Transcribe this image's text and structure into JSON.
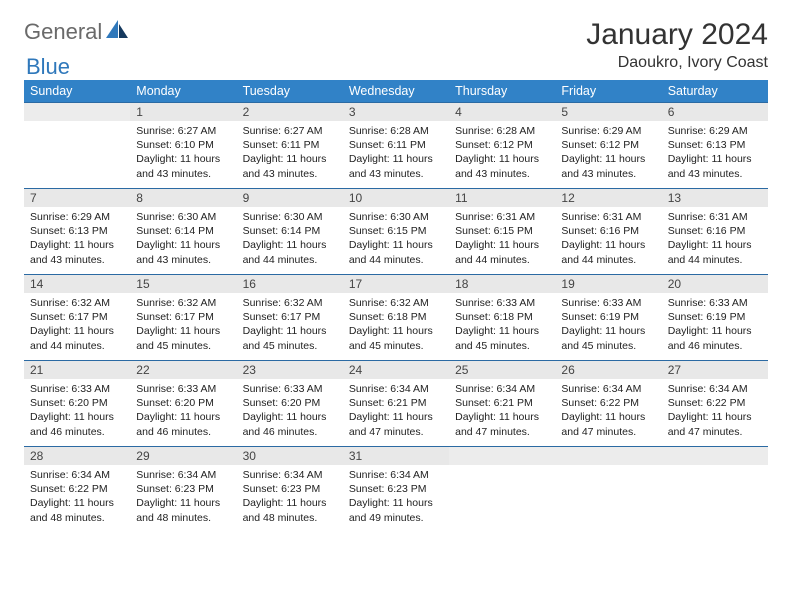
{
  "brand": {
    "part1": "General",
    "part2": "Blue"
  },
  "colors": {
    "header_bg": "#3182c7",
    "header_text": "#ffffff",
    "row_border": "#2b6aa3",
    "daynum_bg": "#e8e8e8",
    "logo_gray": "#6a6a6a",
    "logo_blue": "#2f78bb"
  },
  "title": "January 2024",
  "location": "Daoukro, Ivory Coast",
  "weekdays": [
    "Sunday",
    "Monday",
    "Tuesday",
    "Wednesday",
    "Thursday",
    "Friday",
    "Saturday"
  ],
  "start_offset": 1,
  "days": [
    {
      "n": 1,
      "sr": "6:27 AM",
      "ss": "6:10 PM",
      "dh": 11,
      "dm": 43
    },
    {
      "n": 2,
      "sr": "6:27 AM",
      "ss": "6:11 PM",
      "dh": 11,
      "dm": 43
    },
    {
      "n": 3,
      "sr": "6:28 AM",
      "ss": "6:11 PM",
      "dh": 11,
      "dm": 43
    },
    {
      "n": 4,
      "sr": "6:28 AM",
      "ss": "6:12 PM",
      "dh": 11,
      "dm": 43
    },
    {
      "n": 5,
      "sr": "6:29 AM",
      "ss": "6:12 PM",
      "dh": 11,
      "dm": 43
    },
    {
      "n": 6,
      "sr": "6:29 AM",
      "ss": "6:13 PM",
      "dh": 11,
      "dm": 43
    },
    {
      "n": 7,
      "sr": "6:29 AM",
      "ss": "6:13 PM",
      "dh": 11,
      "dm": 43
    },
    {
      "n": 8,
      "sr": "6:30 AM",
      "ss": "6:14 PM",
      "dh": 11,
      "dm": 43
    },
    {
      "n": 9,
      "sr": "6:30 AM",
      "ss": "6:14 PM",
      "dh": 11,
      "dm": 44
    },
    {
      "n": 10,
      "sr": "6:30 AM",
      "ss": "6:15 PM",
      "dh": 11,
      "dm": 44
    },
    {
      "n": 11,
      "sr": "6:31 AM",
      "ss": "6:15 PM",
      "dh": 11,
      "dm": 44
    },
    {
      "n": 12,
      "sr": "6:31 AM",
      "ss": "6:16 PM",
      "dh": 11,
      "dm": 44
    },
    {
      "n": 13,
      "sr": "6:31 AM",
      "ss": "6:16 PM",
      "dh": 11,
      "dm": 44
    },
    {
      "n": 14,
      "sr": "6:32 AM",
      "ss": "6:17 PM",
      "dh": 11,
      "dm": 44
    },
    {
      "n": 15,
      "sr": "6:32 AM",
      "ss": "6:17 PM",
      "dh": 11,
      "dm": 45
    },
    {
      "n": 16,
      "sr": "6:32 AM",
      "ss": "6:17 PM",
      "dh": 11,
      "dm": 45
    },
    {
      "n": 17,
      "sr": "6:32 AM",
      "ss": "6:18 PM",
      "dh": 11,
      "dm": 45
    },
    {
      "n": 18,
      "sr": "6:33 AM",
      "ss": "6:18 PM",
      "dh": 11,
      "dm": 45
    },
    {
      "n": 19,
      "sr": "6:33 AM",
      "ss": "6:19 PM",
      "dh": 11,
      "dm": 45
    },
    {
      "n": 20,
      "sr": "6:33 AM",
      "ss": "6:19 PM",
      "dh": 11,
      "dm": 46
    },
    {
      "n": 21,
      "sr": "6:33 AM",
      "ss": "6:20 PM",
      "dh": 11,
      "dm": 46
    },
    {
      "n": 22,
      "sr": "6:33 AM",
      "ss": "6:20 PM",
      "dh": 11,
      "dm": 46
    },
    {
      "n": 23,
      "sr": "6:33 AM",
      "ss": "6:20 PM",
      "dh": 11,
      "dm": 46
    },
    {
      "n": 24,
      "sr": "6:34 AM",
      "ss": "6:21 PM",
      "dh": 11,
      "dm": 47
    },
    {
      "n": 25,
      "sr": "6:34 AM",
      "ss": "6:21 PM",
      "dh": 11,
      "dm": 47
    },
    {
      "n": 26,
      "sr": "6:34 AM",
      "ss": "6:22 PM",
      "dh": 11,
      "dm": 47
    },
    {
      "n": 27,
      "sr": "6:34 AM",
      "ss": "6:22 PM",
      "dh": 11,
      "dm": 47
    },
    {
      "n": 28,
      "sr": "6:34 AM",
      "ss": "6:22 PM",
      "dh": 11,
      "dm": 48
    },
    {
      "n": 29,
      "sr": "6:34 AM",
      "ss": "6:23 PM",
      "dh": 11,
      "dm": 48
    },
    {
      "n": 30,
      "sr": "6:34 AM",
      "ss": "6:23 PM",
      "dh": 11,
      "dm": 48
    },
    {
      "n": 31,
      "sr": "6:34 AM",
      "ss": "6:23 PM",
      "dh": 11,
      "dm": 49
    }
  ],
  "labels": {
    "sunrise": "Sunrise:",
    "sunset": "Sunset:",
    "daylight": "Daylight:",
    "hours": "hours",
    "and": "and",
    "minutes": "minutes."
  }
}
